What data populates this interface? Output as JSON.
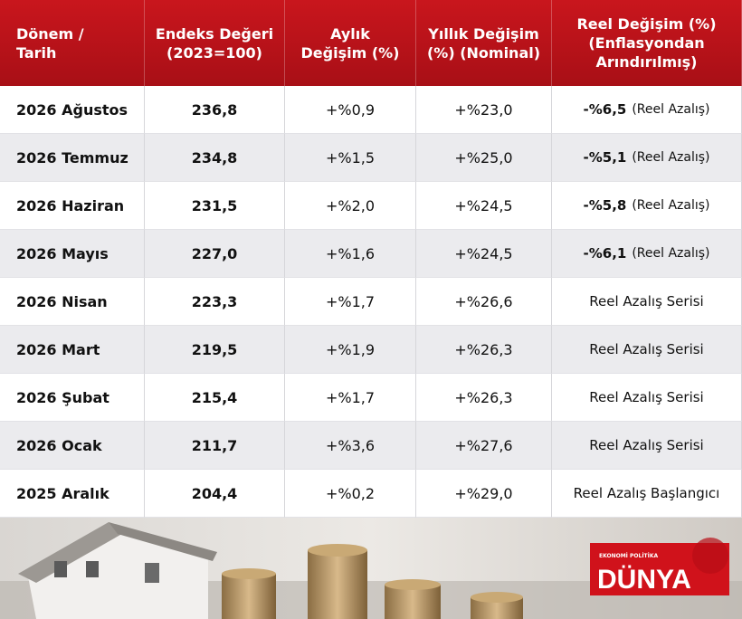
{
  "table": {
    "header": [
      [
        "Dönem /",
        "Tarih"
      ],
      [
        "Endeks Değeri",
        "(2023=100)"
      ],
      [
        "Aylık",
        "Değişim (%)"
      ],
      [
        "Yıllık Değişim",
        "(%) (Nominal)"
      ],
      [
        "Reel Değişim (%)",
        "(Enflasyondan",
        "Arındırılmış)"
      ]
    ],
    "rows": [
      [
        "2026 Ağustos",
        "236,8",
        "+%0,9",
        "+%23,0",
        {
          "value": "-%6,5",
          "note": "(Reel Azalış)"
        }
      ],
      [
        "2026 Temmuz",
        "234,8",
        "+%1,5",
        "+%25,0",
        {
          "value": "-%5,1",
          "note": "(Reel Azalış)"
        }
      ],
      [
        "2026 Haziran",
        "231,5",
        "+%2,0",
        "+%24,5",
        {
          "value": "-%5,8",
          "note": "(Reel Azalış)"
        }
      ],
      [
        "2026 Mayıs",
        "227,0",
        "+%1,6",
        "+%24,5",
        {
          "value": "-%6,1",
          "note": "(Reel Azalış)"
        }
      ],
      [
        "2026 Nisan",
        "223,3",
        "+%1,7",
        "+%26,6",
        "Reel Azalış Serisi"
      ],
      [
        "2026 Mart",
        "219,5",
        "+%1,9",
        "+%26,3",
        "Reel Azalış Serisi"
      ],
      [
        "2026 Şubat",
        "215,4",
        "+%1,7",
        "+%26,3",
        "Reel Azalış Serisi"
      ],
      [
        "2026 Ocak",
        "211,7",
        "+%3,6",
        "+%27,6",
        "Reel Azalış Serisi"
      ],
      [
        "2025 Aralık",
        "204,4",
        "+%0,2",
        "+%29,0",
        "Reel Azalış Başlangıcı"
      ]
    ]
  },
  "footer": {
    "logo_tagline": "EKONOMİ POLİTİKA",
    "logo_text": "DÜNYA"
  }
}
